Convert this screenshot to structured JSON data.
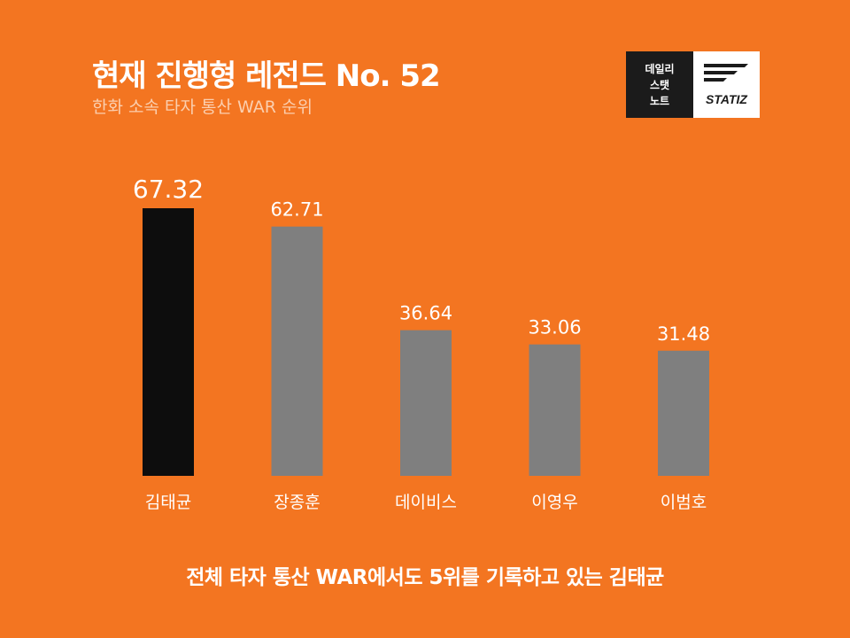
{
  "header": {
    "title": "현재 진행형 레전드 No. 52",
    "subtitle": "한화 소속 타자 통산 WAR 순위"
  },
  "logo": {
    "lines": [
      "데일리",
      "스탯",
      "노트"
    ],
    "brand": "STATIZ",
    "icon": "statiz-stripes-icon"
  },
  "footer": {
    "caption": "전체 타자 통산 WAR에서도 5위를 기록하고 있는 김태균"
  },
  "colors": {
    "background": "#F37521",
    "highlight_bar": "#0D0D0D",
    "bar": "#7F7F7F",
    "text": "#FFFFFF"
  },
  "chart_data": {
    "type": "bar",
    "categories": [
      "김태균",
      "장종훈",
      "데이비스",
      "이영우",
      "이범호"
    ],
    "values": [
      67.32,
      62.71,
      36.64,
      33.06,
      31.48
    ],
    "value_labels": [
      "67.32",
      "62.71",
      "36.64",
      "33.06",
      "31.48"
    ],
    "highlight_index": 0,
    "ylim": [
      0,
      67.32
    ],
    "grid": false,
    "legend": "none"
  }
}
